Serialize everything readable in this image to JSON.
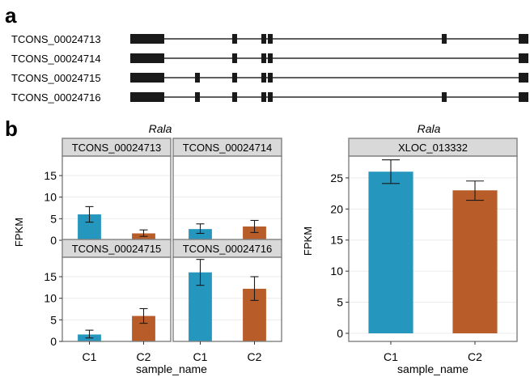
{
  "panel_a": {
    "letter": "a",
    "transcripts": [
      {
        "name": "TCONS_00024713",
        "exons": [
          [
            0,
            42
          ],
          [
            126,
            132
          ],
          [
            162,
            168
          ],
          [
            170,
            176
          ],
          [
            385,
            391
          ],
          [
            480,
            492
          ]
        ]
      },
      {
        "name": "TCONS_00024714",
        "exons": [
          [
            0,
            42
          ],
          [
            126,
            132
          ],
          [
            162,
            168
          ],
          [
            170,
            176
          ],
          [
            480,
            492
          ]
        ]
      },
      {
        "name": "TCONS_00024715",
        "exons": [
          [
            0,
            42
          ],
          [
            80,
            86
          ],
          [
            126,
            132
          ],
          [
            162,
            168
          ],
          [
            170,
            176
          ],
          [
            480,
            492
          ]
        ]
      },
      {
        "name": "TCONS_00024716",
        "exons": [
          [
            0,
            42
          ],
          [
            80,
            86
          ],
          [
            126,
            132
          ],
          [
            162,
            168
          ],
          [
            170,
            176
          ],
          [
            385,
            391
          ],
          [
            480,
            492
          ]
        ]
      }
    ]
  },
  "panel_b": {
    "letter": "b"
  },
  "colors": {
    "C1": "#2596be",
    "C2": "#b85c2a",
    "strip": "#d9d9d9",
    "border": "#808080",
    "grid": "#ebebeb"
  },
  "chart_data": [
    {
      "type": "bar",
      "title": "Rala",
      "xlabel": "sample_name",
      "ylabel": "FPKM",
      "ylim": [
        0,
        19.5
      ],
      "yticks": [
        0,
        5,
        10,
        15
      ],
      "categories": [
        "C1",
        "C2"
      ],
      "facets": [
        {
          "strip": "TCONS_00024713",
          "values": [
            6.0,
            1.6
          ],
          "err_low": [
            4.2,
            0.9
          ],
          "err_high": [
            7.8,
            2.4
          ]
        },
        {
          "strip": "TCONS_00024714",
          "values": [
            2.6,
            3.2
          ],
          "err_low": [
            1.6,
            1.8
          ],
          "err_high": [
            3.8,
            4.6
          ]
        },
        {
          "strip": "TCONS_00024715",
          "values": [
            1.6,
            5.9
          ],
          "err_low": [
            0.8,
            4.2
          ],
          "err_high": [
            2.6,
            7.6
          ]
        },
        {
          "strip": "TCONS_00024716",
          "values": [
            16.0,
            12.2
          ],
          "err_low": [
            13.0,
            9.5
          ],
          "err_high": [
            19.0,
            15.0
          ]
        }
      ]
    },
    {
      "type": "bar",
      "title": "Rala",
      "xlabel": "sample_name",
      "ylabel": "FPKM",
      "ylim": [
        -1.3,
        28.5
      ],
      "yticks": [
        0,
        5,
        10,
        15,
        20,
        25
      ],
      "categories": [
        "C1",
        "C2"
      ],
      "facets": [
        {
          "strip": "XLOC_013332",
          "values": [
            26.0,
            23.0
          ],
          "err_low": [
            24.1,
            21.4
          ],
          "err_high": [
            27.9,
            24.5
          ]
        }
      ]
    }
  ]
}
